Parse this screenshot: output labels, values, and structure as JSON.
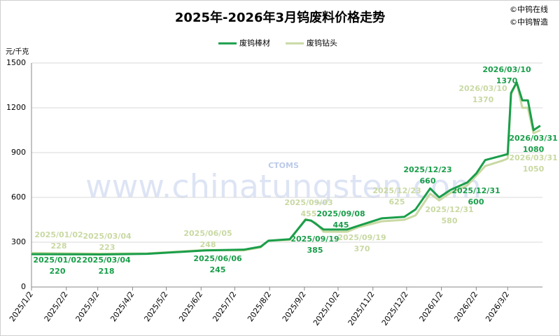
{
  "chart_data": {
    "type": "line",
    "title": "2025年-2026年3月钨废料价格走势",
    "copyright": [
      "©中钨在线",
      "©中钨智造"
    ],
    "watermark": [
      "CTOMS",
      "www.chinatungsten.com"
    ],
    "y_label": "元/千克",
    "ylim": [
      0,
      1500
    ],
    "yticks": [
      0,
      300,
      600,
      900,
      1200,
      1500
    ],
    "grid": true,
    "xlim": [
      "2025-01-02",
      "2026-04-02"
    ],
    "xticks": [
      {
        "value": "2025-01-02",
        "label": "2025/1/2"
      },
      {
        "value": "2025-02-02",
        "label": "2025/2/2"
      },
      {
        "value": "2025-03-02",
        "label": "2025/3/2"
      },
      {
        "value": "2025-04-02",
        "label": "2025/4/2"
      },
      {
        "value": "2025-05-02",
        "label": "2025/5/2"
      },
      {
        "value": "2025-06-02",
        "label": "2025/6/2"
      },
      {
        "value": "2025-07-02",
        "label": "2025/7/2"
      },
      {
        "value": "2025-08-02",
        "label": "2025/8/2"
      },
      {
        "value": "2025-09-02",
        "label": "2025/9/2"
      },
      {
        "value": "2025-10-02",
        "label": "2025/10/2"
      },
      {
        "value": "2025-11-02",
        "label": "2025/11/2"
      },
      {
        "value": "2025-12-02",
        "label": "2025/12/2"
      },
      {
        "value": "2026-01-02",
        "label": "2026/1/2"
      },
      {
        "value": "2026-02-02",
        "label": "2026/2/2"
      },
      {
        "value": "2026-03-02",
        "label": "2026/3/2"
      }
    ],
    "series": [
      {
        "name": "废钨钻头",
        "color": "#c9d9a3",
        "x": [
          "2025-01-02",
          "2025-03-04",
          "2025-04-15",
          "2025-06-05",
          "2025-07-10",
          "2025-07-25",
          "2025-08-01",
          "2025-08-20",
          "2025-09-03",
          "2025-09-12",
          "2025-09-19",
          "2025-10-10",
          "2025-10-20",
          "2025-11-10",
          "2025-11-30",
          "2025-12-10",
          "2025-12-23",
          "2025-12-31",
          "2026-01-10",
          "2026-01-25",
          "2026-02-10",
          "2026-02-25",
          "2026-03-02",
          "2026-03-05",
          "2026-03-10",
          "2026-03-15",
          "2026-03-20",
          "2026-03-25",
          "2026-03-31"
        ],
        "values": [
          228,
          223,
          225,
          248,
          245,
          265,
          310,
          315,
          455,
          430,
          370,
          370,
          400,
          440,
          450,
          480,
          625,
          580,
          630,
          680,
          810,
          845,
          860,
          1290,
          1370,
          1200,
          1200,
          1030,
          1050
        ]
      },
      {
        "name": "废钨棒材",
        "color": "#1a9e4a",
        "x": [
          "2025-01-02",
          "2025-03-04",
          "2025-04-15",
          "2025-06-06",
          "2025-07-10",
          "2025-07-25",
          "2025-08-01",
          "2025-08-20",
          "2025-09-03",
          "2025-09-08",
          "2025-09-19",
          "2025-10-10",
          "2025-10-20",
          "2025-11-10",
          "2025-11-30",
          "2025-12-10",
          "2025-12-23",
          "2025-12-31",
          "2026-01-10",
          "2026-01-25",
          "2026-02-02",
          "2026-02-10",
          "2026-02-25",
          "2026-03-02",
          "2026-03-05",
          "2026-03-10",
          "2026-03-15",
          "2026-03-20",
          "2026-03-25",
          "2026-03-31"
        ],
        "values": [
          220,
          218,
          222,
          245,
          250,
          270,
          310,
          320,
          450,
          445,
          385,
          385,
          410,
          460,
          470,
          520,
          660,
          600,
          650,
          700,
          760,
          850,
          880,
          890,
          1300,
          1370,
          1250,
          1250,
          1050,
          1080
        ]
      }
    ],
    "annotations": [
      {
        "series": 1,
        "label": "2025/01/02",
        "value": 220
      },
      {
        "series": 1,
        "label": "2025/03/04",
        "value": 218
      },
      {
        "series": 1,
        "label": "2025/06/06",
        "value": 245
      },
      {
        "series": 1,
        "label": "2025/09/08",
        "value": 445
      },
      {
        "series": 1,
        "label": "2025/09/19",
        "value": 385
      },
      {
        "series": 1,
        "label": "2025/12/23",
        "value": 660
      },
      {
        "series": 1,
        "label": "2025/12/31",
        "value": 600
      },
      {
        "series": 1,
        "label": "2026/03/10",
        "value": 1370
      },
      {
        "series": 1,
        "label": "2026/03/31",
        "value": 1080
      },
      {
        "series": 0,
        "label": "2025/01/02",
        "value": 228
      },
      {
        "series": 0,
        "label": "2025/03/04",
        "value": 223
      },
      {
        "series": 0,
        "label": "2025/06/05",
        "value": 248
      },
      {
        "series": 0,
        "label": "2025/09/03",
        "value": 455
      },
      {
        "series": 0,
        "label": "2025/09/19",
        "value": 370
      },
      {
        "series": 0,
        "label": "2025/12/23",
        "value": 625
      },
      {
        "series": 0,
        "label": "2025/12/31",
        "value": 580
      },
      {
        "series": 0,
        "label": "2026/03/10",
        "value": 1370
      },
      {
        "series": 0,
        "label": "2026/03/31",
        "value": 1050
      }
    ]
  }
}
